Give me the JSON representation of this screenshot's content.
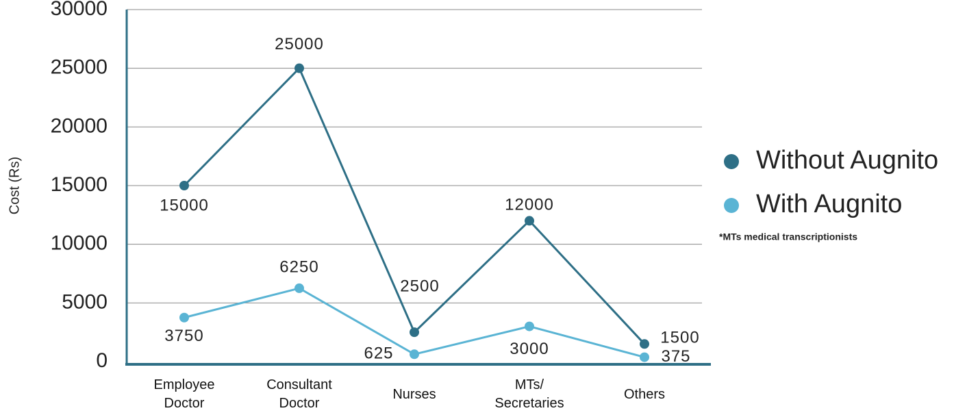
{
  "chart_data": {
    "type": "line",
    "y_label": "Cost (Rs)",
    "categories": [
      "Employee Doctor",
      "Consultant Doctor",
      "Nurses",
      "MTs/ Secretaries",
      "Others"
    ],
    "series": [
      {
        "name": "Without Augnito",
        "color": "#2e6f86",
        "values": [
          15000,
          25000,
          2500,
          12000,
          1500
        ]
      },
      {
        "name": "With Augnito",
        "color": "#5ab4d4",
        "values": [
          3750,
          6250,
          625,
          3000,
          375
        ]
      }
    ],
    "ylim": [
      0,
      30000
    ],
    "yticks": [
      0,
      5000,
      10000,
      15000,
      20000,
      25000,
      30000
    ],
    "grid": true,
    "legend": "right",
    "note": "*MTs medical transcriptionists"
  }
}
